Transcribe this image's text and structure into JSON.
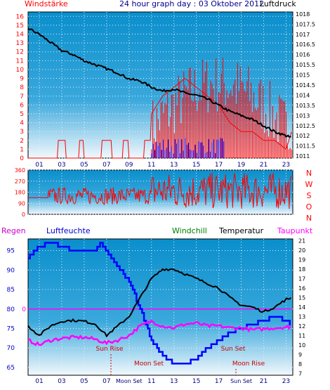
{
  "chart_data": [
    {
      "type": "line",
      "title": "24 hour graph day : 03 Oktober 2012",
      "left_axis": {
        "label": "Windstärke",
        "ticks": [
          "0",
          "1",
          "2",
          "3",
          "4",
          "5",
          "6",
          "7",
          "8",
          "9",
          "10",
          "11",
          "12",
          "13",
          "14",
          "15",
          "16"
        ],
        "ylim": [
          0,
          16.5
        ]
      },
      "right_axis": {
        "label": "Luftdruck",
        "ticks": [
          "1011",
          "1011.5",
          "1012",
          "1012.5",
          "1013",
          "1013.5",
          "1014",
          "1014.5",
          "1015",
          "1015.5",
          "1016",
          "1016.5",
          "1017",
          "1017.5",
          "1018"
        ],
        "ylim": [
          1010.9,
          1018.1
        ]
      },
      "x_ticks": [
        "01",
        "03",
        "05",
        "07",
        "09",
        "11",
        "13",
        "15",
        "17",
        "19",
        "21",
        "23"
      ],
      "series": [
        {
          "name": "Luftdruck",
          "axis": "right",
          "color": "#000000",
          "points": [
            [
              0,
              1017.3
            ],
            [
              1,
              1017.0
            ],
            [
              2,
              1016.6
            ],
            [
              3,
              1016.2
            ],
            [
              4,
              1016.0
            ],
            [
              5,
              1015.7
            ],
            [
              6,
              1015.5
            ],
            [
              7,
              1015.3
            ],
            [
              8,
              1015.1
            ],
            [
              9,
              1014.8
            ],
            [
              10,
              1014.7
            ],
            [
              11,
              1014.4
            ],
            [
              12,
              1014.2
            ],
            [
              13,
              1014.3
            ],
            [
              14,
              1014.1
            ],
            [
              15,
              1014.0
            ],
            [
              16,
              1013.8
            ],
            [
              17,
              1013.5
            ],
            [
              18,
              1013.2
            ],
            [
              19,
              1013.0
            ],
            [
              20,
              1012.8
            ],
            [
              21,
              1012.5
            ],
            [
              22,
              1012.2
            ],
            [
              23,
              1012.0
            ],
            [
              23.5,
              1011.9
            ]
          ]
        },
        {
          "name": "Wind",
          "axis": "left",
          "color": "#ff0000",
          "points": [
            [
              0,
              0
            ],
            [
              2.6,
              0
            ],
            [
              2.7,
              2
            ],
            [
              3.3,
              2
            ],
            [
              3.4,
              0
            ],
            [
              4.5,
              0
            ],
            [
              4.6,
              2
            ],
            [
              4.9,
              2
            ],
            [
              5.0,
              0
            ],
            [
              6.5,
              0
            ],
            [
              6.6,
              2
            ],
            [
              7.4,
              2
            ],
            [
              7.5,
              0
            ],
            [
              8.4,
              0
            ],
            [
              8.5,
              2
            ],
            [
              8.9,
              2
            ],
            [
              9.0,
              0
            ],
            [
              10.3,
              0
            ],
            [
              10.4,
              2
            ],
            [
              10.9,
              2
            ],
            [
              11.0,
              5
            ],
            [
              12.0,
              7
            ],
            [
              13.0,
              8
            ],
            [
              14.0,
              9
            ],
            [
              15.0,
              8
            ],
            [
              16.0,
              7
            ],
            [
              17.0,
              6
            ],
            [
              18.0,
              4
            ],
            [
              19.0,
              3
            ],
            [
              20.0,
              3
            ],
            [
              21.0,
              2
            ],
            [
              22.0,
              2
            ],
            [
              23.0,
              1
            ],
            [
              23.5,
              3
            ]
          ]
        },
        {
          "name": "Böen",
          "axis": "left",
          "color": "#0000ff",
          "points": [
            [
              11.0,
              2
            ],
            [
              12.0,
              1
            ],
            [
              13.0,
              2
            ],
            [
              14.0,
              1
            ],
            [
              15.0,
              2
            ],
            [
              16.0,
              1
            ],
            [
              17.0,
              1
            ]
          ]
        }
      ],
      "grid": true
    },
    {
      "type": "line",
      "left_ticks": [
        "0",
        "90",
        "180",
        "270",
        "360"
      ],
      "right_labels": [
        "N",
        "W",
        "S",
        "O",
        "N"
      ],
      "ylim": [
        0,
        360
      ],
      "series": [
        {
          "name": "Windrichtung",
          "color": "#ff0000",
          "points": [
            [
              0,
              135
            ],
            [
              2,
              140
            ],
            [
              4,
              150
            ],
            [
              6,
              160
            ],
            [
              8,
              170
            ],
            [
              10,
              180
            ],
            [
              12,
              190
            ],
            [
              14,
              200
            ],
            [
              16,
              210
            ],
            [
              18,
              200
            ],
            [
              20,
              190
            ],
            [
              22,
              200
            ],
            [
              23.5,
              210
            ]
          ]
        }
      ],
      "grid": true
    },
    {
      "type": "line",
      "legend": [
        "Regen",
        "Luftfeuchte",
        "Windchill",
        "Temperatur",
        "Taupunkt"
      ],
      "left_axis": {
        "ticks": [
          "65",
          "70",
          "75",
          "80",
          "85",
          "90",
          "95"
        ],
        "ylim": [
          63,
          98
        ]
      },
      "right_axis": {
        "ticks": [
          "7",
          "8",
          "9",
          "10",
          "11",
          "12",
          "13",
          "14",
          "15",
          "16",
          "17",
          "18",
          "19",
          "20",
          "21"
        ],
        "ylim": [
          6.8,
          21.2
        ]
      },
      "zero_label": "0",
      "x_ticks": [
        "01",
        "03",
        "05",
        "07",
        "Moon Set",
        "11",
        "13",
        "15",
        "17",
        "Sun Set",
        "21",
        "23"
      ],
      "series": [
        {
          "name": "Regen",
          "axis": "left",
          "color": "#ff00ff",
          "points": [
            [
              0,
              80
            ],
            [
              23.5,
              80
            ]
          ]
        },
        {
          "name": "Luftfeuchte",
          "axis": "left",
          "color": "#0000ff",
          "points": [
            [
              0,
              93
            ],
            [
              1,
              96
            ],
            [
              2,
              97
            ],
            [
              3,
              96
            ],
            [
              4,
              95
            ],
            [
              5,
              95
            ],
            [
              6,
              95
            ],
            [
              6.5,
              97
            ],
            [
              7,
              95
            ],
            [
              7.5,
              93
            ],
            [
              8,
              91
            ],
            [
              9,
              87
            ],
            [
              10,
              80
            ],
            [
              11,
              72
            ],
            [
              12,
              68
            ],
            [
              13,
              66
            ],
            [
              14,
              66
            ],
            [
              15,
              67
            ],
            [
              16,
              70
            ],
            [
              17,
              72
            ],
            [
              18,
              74
            ],
            [
              19,
              75
            ],
            [
              20,
              76
            ],
            [
              21,
              77
            ],
            [
              22,
              78
            ],
            [
              23,
              77
            ],
            [
              23.5,
              76
            ]
          ]
        },
        {
          "name": "Temperatur",
          "axis": "right",
          "color": "#000000",
          "points": [
            [
              0,
              12
            ],
            [
              1,
              11
            ],
            [
              2,
              12
            ],
            [
              3,
              12.5
            ],
            [
              4,
              12.6
            ],
            [
              5,
              12.5
            ],
            [
              6,
              12.2
            ],
            [
              7,
              11
            ],
            [
              8,
              12
            ],
            [
              9,
              13
            ],
            [
              10,
              15
            ],
            [
              11,
              17
            ],
            [
              12,
              18
            ],
            [
              13,
              18
            ],
            [
              14,
              17.5
            ],
            [
              15,
              17
            ],
            [
              16,
              16.5
            ],
            [
              17,
              16
            ],
            [
              18,
              15
            ],
            [
              19,
              14.2
            ],
            [
              20,
              14
            ],
            [
              21,
              13.5
            ],
            [
              22,
              14
            ],
            [
              23,
              14.8
            ],
            [
              23.5,
              15
            ]
          ]
        },
        {
          "name": "Taupunkt",
          "axis": "right",
          "color": "#ff00ff",
          "points": [
            [
              0,
              10.5
            ],
            [
              1,
              10
            ],
            [
              2,
              10.5
            ],
            [
              3,
              10.7
            ],
            [
              4,
              10.8
            ],
            [
              5,
              10.8
            ],
            [
              6,
              10.6
            ],
            [
              7,
              10.2
            ],
            [
              8,
              10.5
            ],
            [
              9,
              11
            ],
            [
              10,
              12
            ],
            [
              11,
              12.5
            ],
            [
              12,
              12
            ],
            [
              13,
              11.8
            ],
            [
              14,
              12.2
            ],
            [
              15,
              12.3
            ],
            [
              16,
              12
            ],
            [
              17,
              12
            ],
            [
              18,
              11.8
            ],
            [
              19,
              11.8
            ],
            [
              20,
              11.6
            ],
            [
              21,
              11.7
            ],
            [
              22,
              11.8
            ],
            [
              23,
              11.9
            ],
            [
              23.5,
              11.9
            ]
          ]
        }
      ],
      "annotations": [
        "Sun Rise",
        "Moon Set",
        "Sun Set",
        "Moon Rise"
      ],
      "grid": true
    }
  ]
}
